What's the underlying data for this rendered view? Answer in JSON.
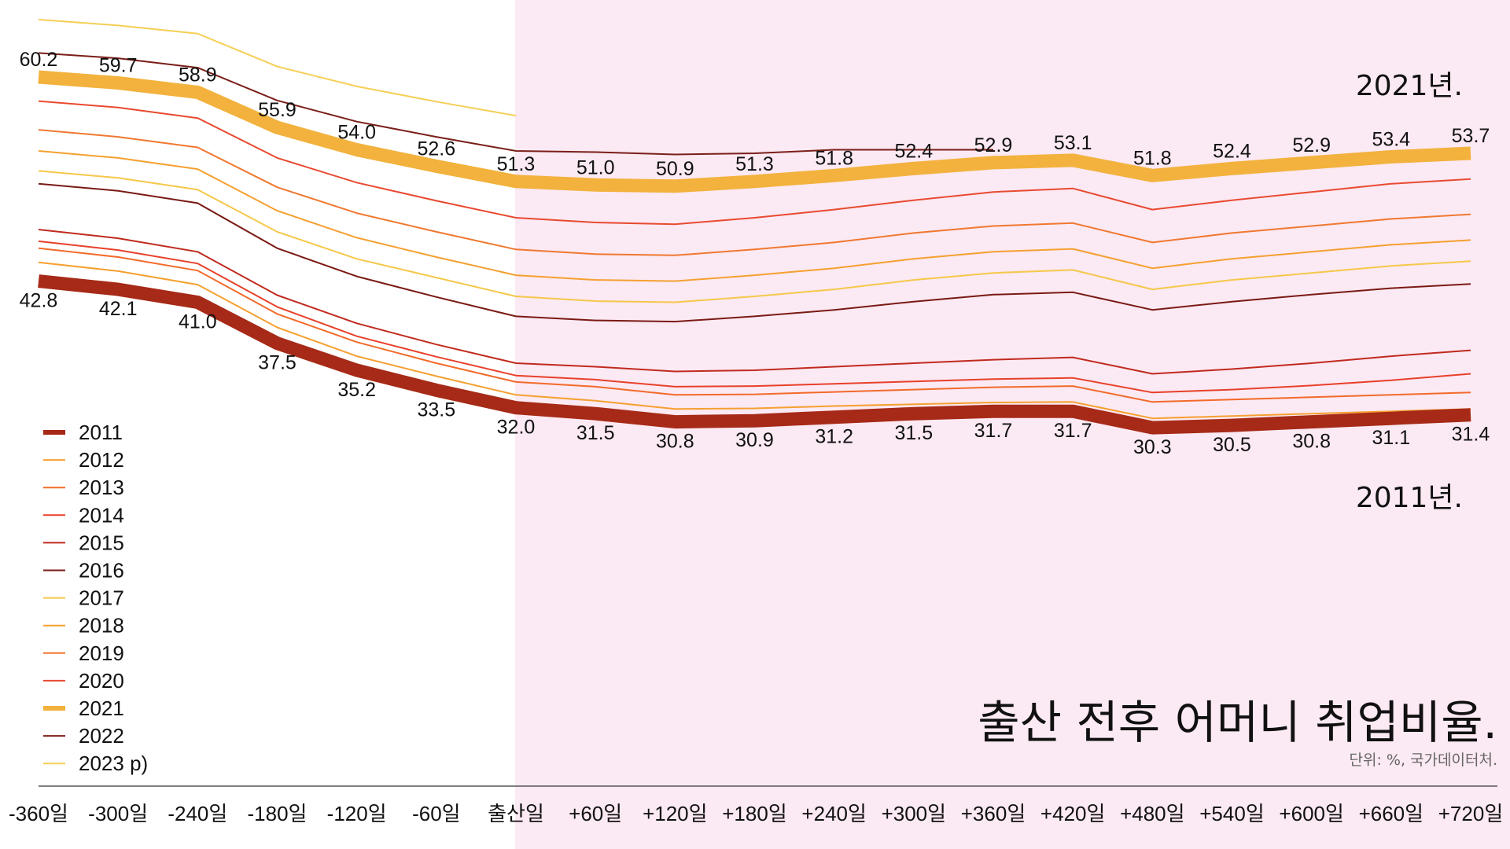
{
  "chart_data": {
    "type": "line",
    "title": "출산 전후 어머니 취업비율.",
    "subtitle": "단위: %, 국가데이터처.",
    "annotations": {
      "top": "2021년.",
      "bottom": "2011년."
    },
    "x": [
      -360,
      -300,
      -240,
      -180,
      -120,
      -60,
      0,
      60,
      120,
      180,
      240,
      300,
      360,
      420,
      480,
      540,
      600,
      660,
      720
    ],
    "x_tick_labels": [
      "-360일",
      "-300일",
      "-240일",
      "-180일",
      "-120일",
      "-60일",
      "출산일",
      "+60일",
      "+120일",
      "+180일",
      "+240일",
      "+300일",
      "+360일",
      "+420일",
      "+480일",
      "+540일",
      "+600일",
      "+660일",
      "+720일"
    ],
    "shaded_region": {
      "from": 0,
      "to": 720,
      "color": "#fbe9f3"
    },
    "legend_position": "left",
    "grid": false,
    "series": [
      {
        "name": "2011",
        "color": "#a62a17",
        "highlight": true,
        "values": [
          42.8,
          42.1,
          41.0,
          37.5,
          35.2,
          33.5,
          32.0,
          31.5,
          30.8,
          30.9,
          31.2,
          31.5,
          31.7,
          31.7,
          30.3,
          30.5,
          30.8,
          31.1,
          31.4
        ]
      },
      {
        "name": "2012",
        "color": "#f5a030",
        "values": [
          44.4,
          43.65,
          42.5,
          38.85,
          36.4,
          34.7,
          33.1,
          32.6,
          31.9,
          31.95,
          32.15,
          32.3,
          32.45,
          32.5,
          31.1,
          31.3,
          31.5,
          31.7,
          31.9
        ]
      },
      {
        "name": "2013",
        "color": "#f26a2a",
        "values": [
          45.6,
          44.85,
          43.7,
          40.0,
          37.6,
          35.8,
          34.2,
          33.8,
          33.1,
          33.15,
          33.35,
          33.55,
          33.75,
          33.85,
          32.5,
          32.7,
          32.9,
          33.1,
          33.3
        ]
      },
      {
        "name": "2014",
        "color": "#e8402a",
        "values": [
          46.2,
          45.45,
          44.3,
          40.6,
          38.1,
          36.35,
          34.75,
          34.4,
          33.8,
          33.85,
          34.05,
          34.25,
          34.45,
          34.55,
          33.3,
          33.55,
          33.9,
          34.35,
          34.9
        ]
      },
      {
        "name": "2015",
        "color": "#c02a1e",
        "values": [
          47.2,
          46.45,
          45.3,
          41.6,
          39.2,
          37.4,
          35.8,
          35.5,
          35.1,
          35.2,
          35.5,
          35.8,
          36.1,
          36.3,
          34.9,
          35.3,
          35.8,
          36.4,
          36.9
        ]
      },
      {
        "name": "2016",
        "color": "#7a1a14",
        "values": [
          51.1,
          50.5,
          49.45,
          45.6,
          43.2,
          41.45,
          39.8,
          39.45,
          39.35,
          39.8,
          40.35,
          41.05,
          41.65,
          41.85,
          40.35,
          41.05,
          41.65,
          42.2,
          42.55
        ]
      },
      {
        "name": "2017",
        "color": "#f5c84a",
        "values": [
          52.2,
          51.6,
          50.6,
          47.0,
          44.7,
          43.1,
          41.5,
          41.1,
          41.0,
          41.5,
          42.1,
          42.9,
          43.5,
          43.75,
          42.1,
          42.9,
          43.5,
          44.1,
          44.5
        ]
      },
      {
        "name": "2018",
        "color": "#f5a030",
        "values": [
          53.9,
          53.3,
          52.35,
          48.8,
          46.5,
          44.85,
          43.3,
          42.9,
          42.8,
          43.3,
          43.9,
          44.7,
          45.3,
          45.55,
          43.9,
          44.7,
          45.3,
          45.9,
          46.3
        ]
      },
      {
        "name": "2019",
        "color": "#f07830",
        "values": [
          55.7,
          55.1,
          54.2,
          50.8,
          48.6,
          47.0,
          45.5,
          45.1,
          45.0,
          45.5,
          46.1,
          46.9,
          47.5,
          47.75,
          46.1,
          46.9,
          47.5,
          48.1,
          48.5
        ]
      },
      {
        "name": "2020",
        "color": "#e84a30",
        "values": [
          58.15,
          57.6,
          56.7,
          53.3,
          51.2,
          49.65,
          48.2,
          47.8,
          47.65,
          48.2,
          48.9,
          49.7,
          50.4,
          50.7,
          48.9,
          49.7,
          50.4,
          51.1,
          51.5
        ]
      },
      {
        "name": "2021",
        "color": "#f2b23d",
        "highlight": true,
        "values": [
          60.2,
          59.7,
          58.9,
          55.9,
          54.0,
          52.6,
          51.3,
          51.0,
          50.9,
          51.3,
          51.8,
          52.4,
          52.9,
          53.1,
          51.8,
          52.4,
          52.9,
          53.4,
          53.7
        ]
      },
      {
        "name": "2022",
        "color": "#7a1e18",
        "values": [
          62.25,
          61.8,
          61.0,
          58.2,
          56.4,
          55.1,
          53.9,
          53.8,
          53.6,
          53.7,
          54.0,
          54.0,
          54.0,
          null,
          null,
          null,
          null,
          null,
          null
        ]
      },
      {
        "name": "2023 p)",
        "color": "#f5cf55",
        "values": [
          65.1,
          64.6,
          63.9,
          61.1,
          59.4,
          58.1,
          56.9,
          null,
          null,
          null,
          null,
          null,
          null,
          null,
          null,
          null,
          null,
          null,
          null
        ]
      }
    ]
  }
}
